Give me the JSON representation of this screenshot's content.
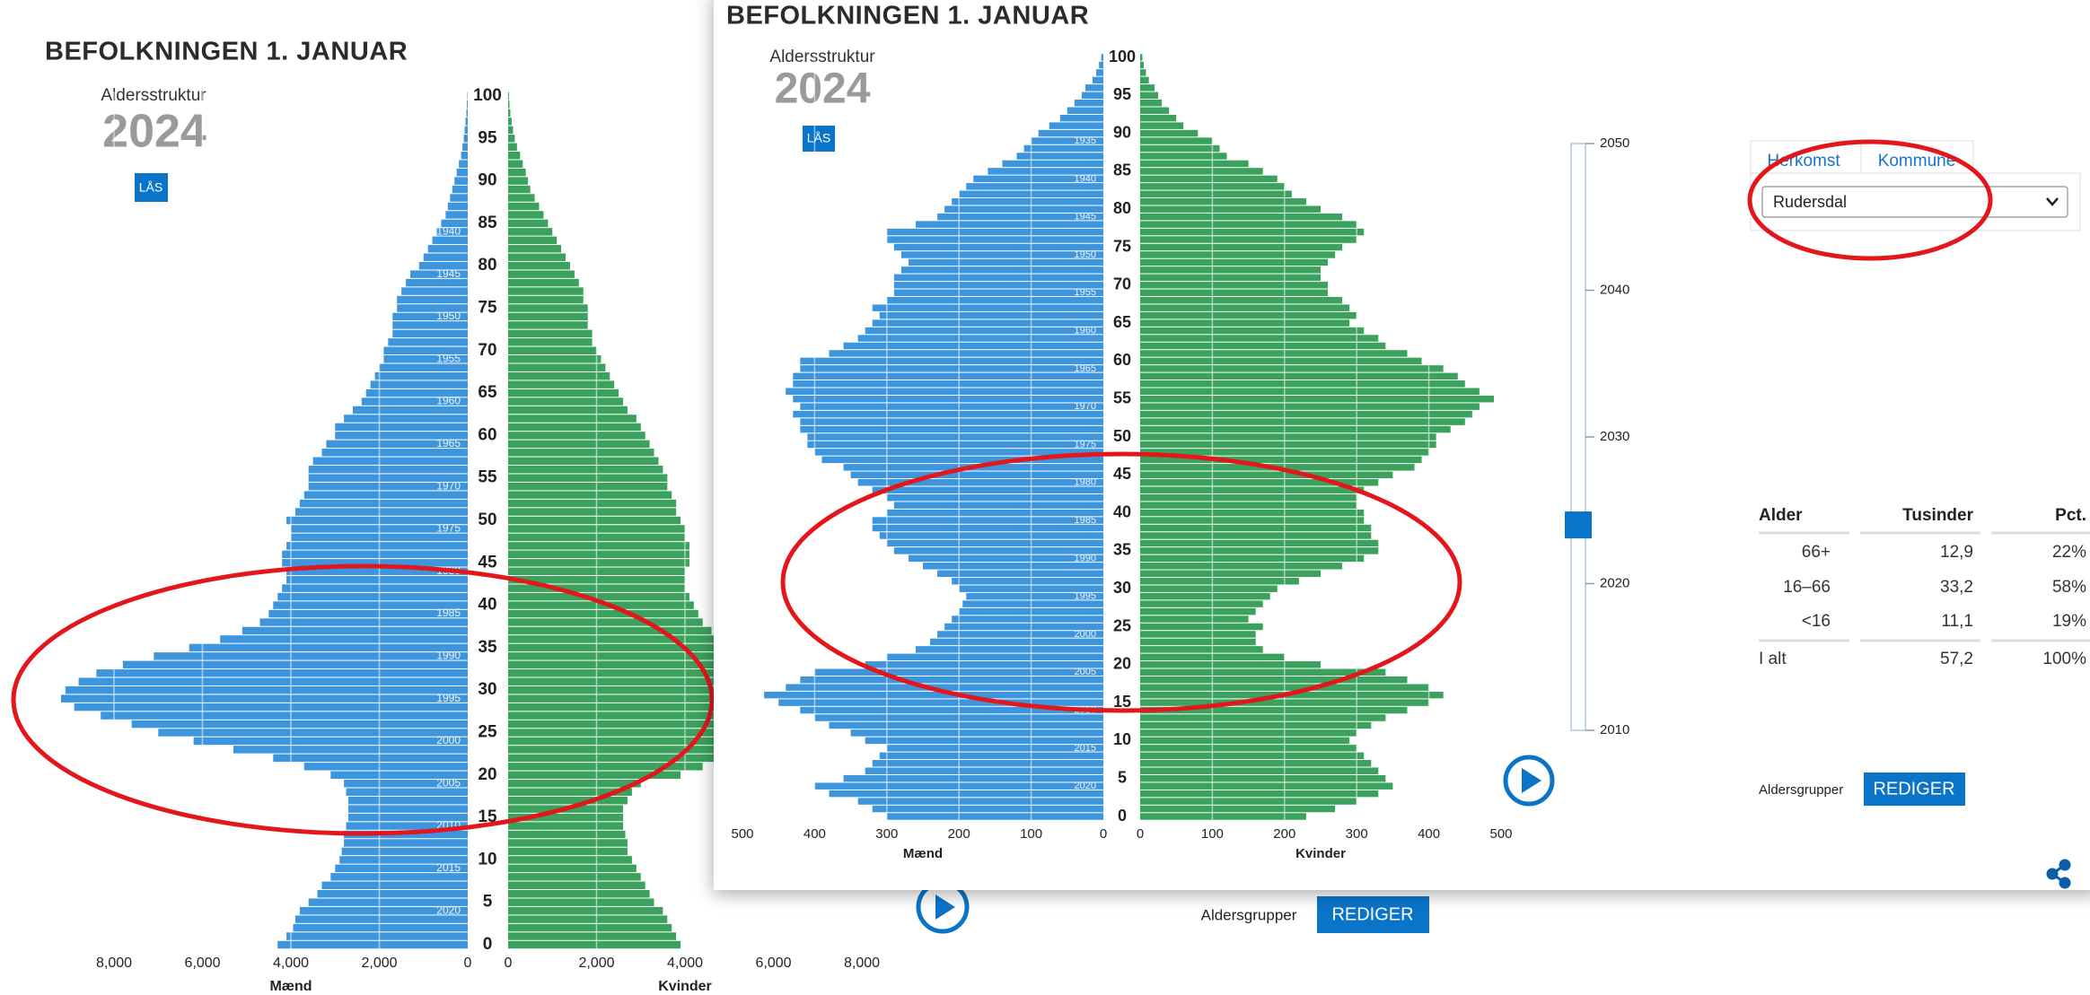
{
  "chart_data": [
    {
      "type": "pyramid",
      "title": "BEFOLKNINGEN 1. JANUAR",
      "subtitle": "Aldersstruktur",
      "year": 2024,
      "categories": [
        0,
        null,
        null,
        null,
        null,
        5,
        null,
        null,
        null,
        null,
        10,
        null,
        null,
        null,
        null,
        15,
        null,
        null,
        null,
        null,
        20,
        null,
        null,
        null,
        null,
        25,
        null,
        null,
        null,
        null,
        30,
        null,
        null,
        null,
        null,
        35,
        null,
        null,
        null,
        null,
        40,
        null,
        null,
        null,
        null,
        45,
        null,
        null,
        null,
        null,
        50,
        null,
        null,
        null,
        null,
        55,
        null,
        null,
        null,
        null,
        60,
        null,
        null,
        null,
        null,
        65,
        null,
        null,
        null,
        null,
        70,
        null,
        null,
        null,
        null,
        75,
        null,
        null,
        null,
        null,
        80,
        null,
        null,
        null,
        null,
        85,
        null,
        null,
        null,
        null,
        90,
        null,
        null,
        null,
        null,
        95,
        null,
        null,
        null,
        null,
        100
      ],
      "cohorts": [
        1940,
        1945,
        1950,
        1955,
        1960,
        1965,
        1970,
        1975,
        1980,
        1985,
        1990,
        1995,
        2000,
        2005,
        2010,
        2015,
        2020
      ],
      "xlim": [
        0,
        8000
      ],
      "xticks": [
        0,
        {
          "value": 2000,
          "label": "2,000"
        },
        {
          "value": 4000,
          "label": "4,000"
        },
        {
          "value": 6000,
          "label": "6,000"
        },
        {
          "value": 8000,
          "label": "8,000"
        }
      ],
      "grid": true,
      "series": [
        {
          "name": "Mænd",
          "color": "#3d95dd",
          "values": [
            4300,
            4100,
            3950,
            3900,
            3800,
            3600,
            3400,
            3300,
            3100,
            3000,
            2900,
            2850,
            2800,
            2800,
            2750,
            2700,
            2700,
            2700,
            2750,
            2800,
            3100,
            3700,
            4400,
            5300,
            6200,
            7000,
            7600,
            8300,
            8900,
            9200,
            9100,
            8800,
            8400,
            7800,
            7100,
            6300,
            5600,
            5100,
            4700,
            4500,
            4400,
            4300,
            4200,
            4100,
            4100,
            4200,
            4200,
            4100,
            4000,
            4000,
            4100,
            3900,
            3800,
            3700,
            3600,
            3600,
            3600,
            3500,
            3300,
            3200,
            3000,
            3000,
            2800,
            2600,
            2400,
            2300,
            2200,
            2100,
            2000,
            1900,
            1900,
            1800,
            1700,
            1700,
            1700,
            1600,
            1600,
            1500,
            1400,
            1300,
            1100,
            1000,
            900,
            800,
            700,
            600,
            500,
            450,
            400,
            350,
            300,
            250,
            200,
            150,
            120,
            90,
            70,
            50,
            30,
            20,
            10
          ]
        },
        {
          "name": "Kvinder",
          "color": "#3aa25c",
          "values": [
            3900,
            3800,
            3700,
            3600,
            3500,
            3300,
            3200,
            3100,
            3000,
            2900,
            2800,
            2700,
            2700,
            2650,
            2600,
            2600,
            2600,
            2700,
            2800,
            3000,
            3900,
            4400,
            5200,
            6000,
            6800,
            7500,
            8000,
            8400,
            8600,
            8600,
            8400,
            8000,
            7500,
            6900,
            6200,
            5500,
            5000,
            4600,
            4400,
            4300,
            4200,
            4100,
            4000,
            4000,
            4000,
            4100,
            4100,
            4100,
            4000,
            4000,
            3900,
            3800,
            3800,
            3700,
            3600,
            3600,
            3500,
            3400,
            3300,
            3200,
            3100,
            3000,
            2900,
            2700,
            2600,
            2500,
            2400,
            2300,
            2200,
            2100,
            2000,
            1900,
            1900,
            1800,
            1800,
            1800,
            1700,
            1700,
            1600,
            1500,
            1400,
            1300,
            1200,
            1100,
            1000,
            900,
            800,
            700,
            600,
            500,
            450,
            400,
            330,
            270,
            200,
            150,
            110,
            80,
            50,
            30,
            20
          ]
        }
      ]
    },
    {
      "type": "pyramid",
      "title": "BEFOLKNINGEN 1. JANUAR",
      "subtitle": "Aldersstruktur",
      "year": 2024,
      "categories": [
        0,
        null,
        null,
        null,
        null,
        5,
        null,
        null,
        null,
        null,
        10,
        null,
        null,
        null,
        null,
        15,
        null,
        null,
        null,
        null,
        20,
        null,
        null,
        null,
        null,
        25,
        null,
        null,
        null,
        null,
        30,
        null,
        null,
        null,
        null,
        35,
        null,
        null,
        null,
        null,
        40,
        null,
        null,
        null,
        null,
        45,
        null,
        null,
        null,
        null,
        50,
        null,
        null,
        null,
        null,
        55,
        null,
        null,
        null,
        null,
        60,
        null,
        null,
        null,
        null,
        65,
        null,
        null,
        null,
        null,
        70,
        null,
        null,
        null,
        null,
        75,
        null,
        null,
        null,
        null,
        80,
        null,
        null,
        null,
        null,
        85,
        null,
        null,
        null,
        null,
        90,
        null,
        null,
        null,
        null,
        95,
        null,
        null,
        null,
        null,
        100
      ],
      "cohorts": [
        1935,
        1940,
        1945,
        1950,
        1955,
        1960,
        1965,
        1970,
        1975,
        1980,
        1985,
        1990,
        1995,
        2000,
        2005,
        2010,
        2015,
        2020
      ],
      "xlim": [
        0,
        500
      ],
      "xticks": [
        0,
        100,
        200,
        300,
        400,
        500
      ],
      "grid": true,
      "series": [
        {
          "name": "Mænd",
          "color": "#3d95dd",
          "values": [
            300,
            320,
            340,
            380,
            400,
            360,
            330,
            320,
            310,
            300,
            330,
            350,
            380,
            400,
            420,
            450,
            470,
            440,
            420,
            400,
            330,
            300,
            260,
            240,
            230,
            220,
            210,
            200,
            195,
            190,
            200,
            210,
            230,
            250,
            270,
            290,
            300,
            310,
            320,
            320,
            300,
            290,
            300,
            320,
            340,
            350,
            360,
            390,
            400,
            410,
            410,
            420,
            420,
            430,
            420,
            430,
            440,
            430,
            430,
            420,
            420,
            380,
            360,
            340,
            330,
            320,
            310,
            320,
            300,
            290,
            290,
            290,
            280,
            270,
            280,
            290,
            300,
            300,
            260,
            230,
            220,
            210,
            200,
            190,
            180,
            160,
            140,
            120,
            110,
            100,
            90,
            75,
            60,
            50,
            40,
            30,
            25,
            15,
            10,
            6,
            3
          ]
        },
        {
          "name": "Kvinder",
          "color": "#3aa25c",
          "values": [
            230,
            270,
            300,
            330,
            350,
            340,
            330,
            320,
            310,
            300,
            290,
            300,
            320,
            340,
            370,
            400,
            420,
            400,
            370,
            340,
            250,
            200,
            170,
            160,
            160,
            170,
            150,
            160,
            170,
            180,
            190,
            220,
            250,
            280,
            310,
            330,
            330,
            320,
            320,
            310,
            310,
            300,
            300,
            310,
            330,
            350,
            380,
            390,
            400,
            410,
            410,
            430,
            450,
            460,
            470,
            490,
            470,
            450,
            440,
            420,
            390,
            370,
            340,
            330,
            310,
            290,
            300,
            290,
            280,
            260,
            260,
            250,
            250,
            260,
            270,
            280,
            300,
            310,
            300,
            280,
            250,
            230,
            210,
            200,
            190,
            170,
            150,
            120,
            110,
            100,
            80,
            60,
            50,
            40,
            30,
            25,
            20,
            12,
            8,
            5,
            3
          ]
        }
      ]
    }
  ],
  "slider": {
    "lim": [
      2010,
      2050
    ],
    "ticks": [
      2010,
      2020,
      2030,
      2040,
      2050
    ]
  },
  "ui": {
    "lock": "LÅS",
    "group_label": "Aldersgrupper",
    "edit": "REDIGER",
    "tabs": [
      "Herkomst",
      "Kommune"
    ],
    "select": "Rudersdal"
  },
  "table": {
    "header": [
      "Alder",
      "Tusinder",
      "Pct."
    ],
    "rows": [
      [
        "66+",
        "12,9",
        "22%"
      ],
      [
        "16–66",
        "33,2",
        "58%"
      ],
      [
        "<16",
        "11,1",
        "19%"
      ],
      [
        "I alt",
        "57,2",
        "100%"
      ]
    ]
  }
}
